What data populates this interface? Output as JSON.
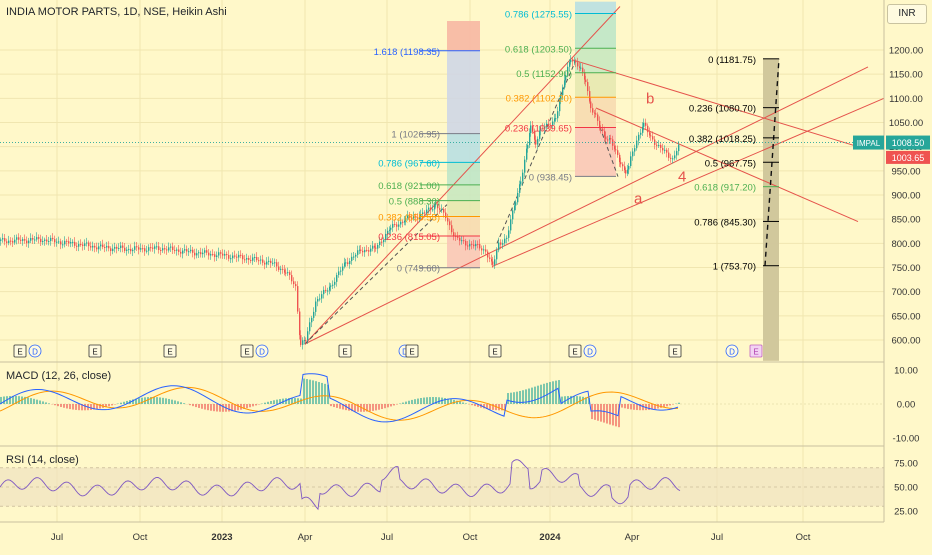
{
  "header": {
    "title": "INDIA MOTOR PARTS, 1D, NSE, Heikin Ashi",
    "currency": "INR",
    "macd_title": "MACD (12, 26, close)",
    "rsi_title": "RSI (14, close)"
  },
  "colors": {
    "background": "#fff8c9",
    "candle_up": "#26a69a",
    "candle_down": "#ef5350",
    "trendline": "#e5534b",
    "macd_line": "#2962ff",
    "signal_line": "#ff9800",
    "rsi_line": "#7e57c2",
    "fib_blue": "#2962ff",
    "fib_teal": "#00bcd4",
    "fib_green": "#4caf50",
    "fib_orange": "#ff9800",
    "fib_red": "#f23645"
  },
  "chart_data": {
    "type": "line",
    "symbol_tag": "IMPAL",
    "last_price": "1008.50",
    "prev_price": "1003.65",
    "y_axis_ticks": [
      "1200.00",
      "1150.00",
      "1100.00",
      "1050.00",
      "1000.00",
      "950.00",
      "900.00",
      "850.00",
      "800.00",
      "750.00",
      "700.00",
      "650.00",
      "600.00"
    ],
    "x_axis_ticks": [
      "Jul",
      "Oct",
      "2023",
      "Apr",
      "Jul",
      "Oct",
      "2024",
      "Apr",
      "Jul",
      "Oct"
    ],
    "price_path": [
      [
        0,
        805
      ],
      [
        40,
        808
      ],
      [
        70,
        800
      ],
      [
        100,
        792
      ],
      [
        130,
        788
      ],
      [
        160,
        790
      ],
      [
        190,
        782
      ],
      [
        220,
        776
      ],
      [
        250,
        768
      ],
      [
        270,
        760
      ],
      [
        285,
        742
      ],
      [
        295,
        710
      ],
      [
        300,
        592
      ],
      [
        305,
        600
      ],
      [
        315,
        680
      ],
      [
        330,
        712
      ],
      [
        345,
        760
      ],
      [
        360,
        785
      ],
      [
        375,
        790
      ],
      [
        390,
        832
      ],
      [
        405,
        850
      ],
      [
        420,
        858
      ],
      [
        435,
        880
      ],
      [
        445,
        855
      ],
      [
        455,
        810
      ],
      [
        465,
        800
      ],
      [
        475,
        795
      ],
      [
        485,
        785
      ],
      [
        492,
        752
      ],
      [
        498,
        800
      ],
      [
        506,
        810
      ],
      [
        515,
        890
      ],
      [
        520,
        930
      ],
      [
        527,
        1000
      ],
      [
        530,
        1045
      ],
      [
        535,
        1010
      ],
      [
        540,
        1035
      ],
      [
        548,
        1045
      ],
      [
        555,
        1060
      ],
      [
        560,
        1100
      ],
      [
        565,
        1150
      ],
      [
        570,
        1185
      ],
      [
        575,
        1170
      ],
      [
        580,
        1160
      ],
      [
        585,
        1140
      ],
      [
        590,
        1080
      ],
      [
        595,
        1060
      ],
      [
        600,
        1040
      ],
      [
        605,
        1020
      ],
      [
        610,
        1010
      ],
      [
        615,
        990
      ],
      [
        620,
        970
      ],
      [
        625,
        944
      ],
      [
        628,
        958
      ],
      [
        632,
        990
      ],
      [
        638,
        1025
      ],
      [
        643,
        1045
      ],
      [
        650,
        1020
      ],
      [
        658,
        1000
      ],
      [
        666,
        985
      ],
      [
        672,
        975
      ],
      [
        676,
        993
      ],
      [
        680,
        1005
      ]
    ],
    "main_y_range": [
      580,
      1220
    ],
    "annotations": {
      "wave_a": "a",
      "wave_b": "b",
      "wave_4": "4",
      "fib1": [
        {
          "label": "1.618 (1198.35)",
          "value": 1198.35,
          "color": "#2962ff"
        },
        {
          "label": "1 (1026.95)",
          "value": 1026.95,
          "color": "#787b86"
        },
        {
          "label": "0.786 (967.60)",
          "value": 967.6,
          "color": "#00bcd4"
        },
        {
          "label": "0.618 (921.00)",
          "value": 921.0,
          "color": "#4caf50"
        },
        {
          "label": "0.5 (888.30)",
          "value": 888.3,
          "color": "#4caf50"
        },
        {
          "label": "0.382 (855.55)",
          "value": 855.55,
          "color": "#ff9800"
        },
        {
          "label": "0.236 (815.05)",
          "value": 815.05,
          "color": "#f23645"
        },
        {
          "label": "0 (749.60)",
          "value": 749.6,
          "color": "#787b86"
        }
      ],
      "fib2": [
        {
          "label": "0.786 (1275.55)",
          "value": 1275.55,
          "color": "#00bcd4"
        },
        {
          "label": "0.618 (1203.50)",
          "value": 1203.5,
          "color": "#4caf50"
        },
        {
          "label": "0.5 (1152.90)",
          "value": 1152.9,
          "color": "#4caf50"
        },
        {
          "label": "0.382 (1102.20)",
          "value": 1102.2,
          "color": "#ff9800"
        },
        {
          "label": "0.236 (1039.65)",
          "value": 1039.65,
          "color": "#f23645"
        },
        {
          "label": "0 (938.45)",
          "value": 938.45,
          "color": "#787b86"
        }
      ],
      "fib3": [
        {
          "label": "0 (1181.75)",
          "value": 1181.75,
          "color": "#000000"
        },
        {
          "label": "0.236 (1080.70)",
          "value": 1080.7,
          "color": "#000000"
        },
        {
          "label": "0.382 (1018.25)",
          "value": 1018.25,
          "color": "#000000"
        },
        {
          "label": "0.5 (967.75)",
          "value": 967.75,
          "color": "#000000"
        },
        {
          "label": "0.618 (917.20)",
          "value": 917.2,
          "color": "#4caf50"
        },
        {
          "label": "0.786 (845.30)",
          "value": 845.3,
          "color": "#000000"
        },
        {
          "label": "1 (753.70)",
          "value": 753.7,
          "color": "#000000"
        }
      ],
      "events": [
        "E",
        "D",
        "E",
        "E",
        "E",
        "D",
        "E",
        "D",
        "E",
        "E",
        "D",
        "E",
        "D",
        "E"
      ]
    },
    "macd": {
      "ticks": [
        "10.00",
        "0.00",
        "-10.00"
      ],
      "y_range": [
        -12,
        12
      ]
    },
    "rsi": {
      "ticks": [
        "75.00",
        "50.00",
        "25.00"
      ],
      "y_range": [
        18,
        82
      ],
      "band": [
        30,
        70
      ]
    }
  }
}
